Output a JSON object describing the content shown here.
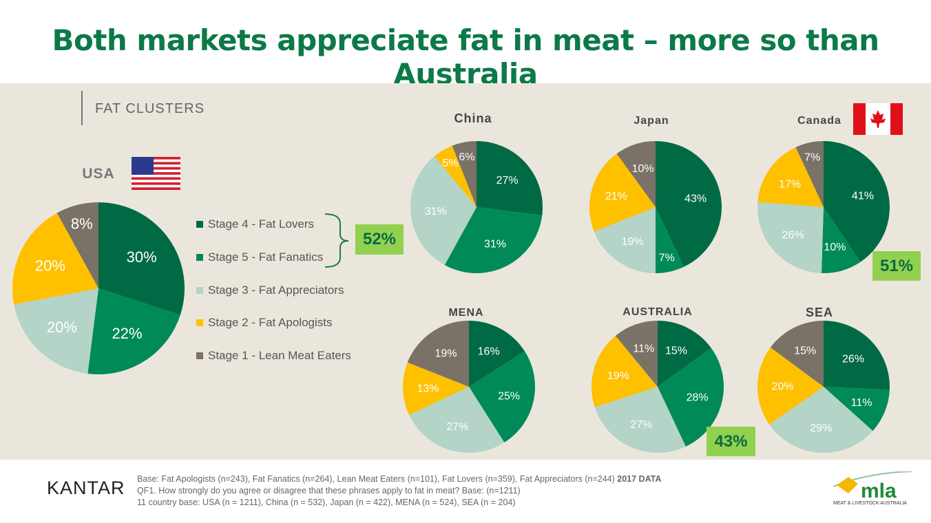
{
  "title": "Both markets appreciate fat in meat – more so than Australia",
  "section": "FAT CLUSTERS",
  "colors": {
    "stage4": "#006a45",
    "stage5": "#008a57",
    "stage3": "#b3d4c7",
    "stage2": "#ffc000",
    "stage1": "#7a7266",
    "badge": "#92d050",
    "title": "#0b7a47"
  },
  "legend": [
    "Stage 4 - Fat Lovers",
    "Stage 5 - Fat Fanatics",
    "Stage 3 - Fat Appreciators",
    "Stage 2 - Fat Apologists",
    "Stage 1 - Lean Meat Eaters"
  ],
  "badges": {
    "usa": "52%",
    "canada": "51%",
    "australia": "43%"
  },
  "chart_data": [
    {
      "type": "pie",
      "title": "USA",
      "categories": [
        "Stage 4 - Fat Lovers",
        "Stage 5 - Fat Fanatics",
        "Stage 3 - Fat Appreciators",
        "Stage 2 - Fat Apologists",
        "Stage 1 - Lean Meat Eaters"
      ],
      "values": [
        30,
        22,
        20,
        20,
        8
      ],
      "flag": "usa-flag"
    },
    {
      "type": "pie",
      "title": "China",
      "values": [
        27,
        31,
        31,
        5,
        6
      ]
    },
    {
      "type": "pie",
      "title": "Japan",
      "values": [
        43,
        7,
        19,
        21,
        10
      ]
    },
    {
      "type": "pie",
      "title": "Canada",
      "values": [
        41,
        10,
        26,
        17,
        7
      ],
      "flag": "canada-flag"
    },
    {
      "type": "pie",
      "title": "MENA",
      "values": [
        16,
        25,
        27,
        13,
        19
      ]
    },
    {
      "type": "pie",
      "title": "AUSTRALIA",
      "values": [
        15,
        28,
        27,
        19,
        11
      ]
    },
    {
      "type": "pie",
      "title": "SEA",
      "values": [
        26,
        11,
        29,
        20,
        15
      ]
    }
  ],
  "footer": {
    "brand": "KANTAR",
    "line1": "Base: Fat Apologists (n=243), Fat Fanatics (n=264), Lean Meat Eaters (n=101), Fat Lovers (n=359), Fat Appreciators (n=244)",
    "line1_bold": "2017 DATA",
    "line2": "QF1. How strongly do you agree or disagree that these phrases apply to fat in meat? Base: (n=1211)",
    "line3": "11 country base: USA (n = 1211), China (n = 532), Japan (n = 422), MENA (n = 524), SEA (n = 204)",
    "logo_text": "mla",
    "logo_sub": "MEAT & LIVESTOCK AUSTRALIA"
  }
}
